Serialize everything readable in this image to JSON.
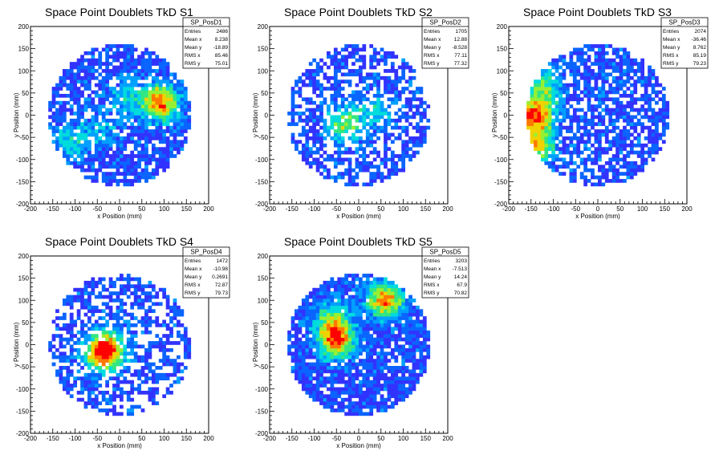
{
  "chart_data": [
    {
      "type": "heatmap",
      "title": "Space Point Doublets TkD S1",
      "xlabel": "x Position (mm)",
      "ylabel": "y Position (mm)",
      "xlim": [
        -200,
        200
      ],
      "ylim": [
        -200,
        200
      ],
      "xticks": [
        "-200",
        "-150",
        "-100",
        "-50",
        "0",
        "50",
        "100",
        "150",
        "200"
      ],
      "yticks": [
        "-200",
        "-150",
        "-100",
        "-50",
        "0",
        "50",
        "100",
        "150",
        "200"
      ],
      "stats": {
        "name": "SP_PosD1",
        "rows": [
          {
            "label": "Entries",
            "value": "2486"
          },
          {
            "label": "Mean x",
            "value": "8.238"
          },
          {
            "label": "Mean y",
            "value": "-18.89"
          },
          {
            "label": "RMS x",
            "value": "85.46"
          },
          {
            "label": "RMS y",
            "value": "75.01"
          }
        ]
      },
      "distribution": {
        "radius": 160,
        "fill": 0.78,
        "hotspots": [
          [
            90,
            30,
            1.0
          ],
          [
            -110,
            -60,
            0.35
          ],
          [
            20,
            40,
            0.3
          ],
          [
            -40,
            -30,
            0.25
          ]
        ]
      }
    },
    {
      "type": "heatmap",
      "title": "Space Point Doublets TkD S2",
      "xlabel": "x Position (mm)",
      "ylabel": "y Position (mm)",
      "xlim": [
        -200,
        200
      ],
      "ylim": [
        -200,
        200
      ],
      "xticks": [
        "-200",
        "-150",
        "-100",
        "-50",
        "0",
        "50",
        "100",
        "150",
        "200"
      ],
      "yticks": [
        "-200",
        "-150",
        "-100",
        "-50",
        "0",
        "50",
        "100",
        "150",
        "200"
      ],
      "stats": {
        "name": "SP_PosD2",
        "rows": [
          {
            "label": "Entries",
            "value": "1705"
          },
          {
            "label": "Mean x",
            "value": "12.88"
          },
          {
            "label": "Mean y",
            "value": "-8.528"
          },
          {
            "label": "RMS x",
            "value": "77.11"
          },
          {
            "label": "RMS y",
            "value": "77.32"
          }
        ]
      },
      "distribution": {
        "radius": 160,
        "fill": 0.58,
        "hotspots": [
          [
            -30,
            -20,
            0.6
          ],
          [
            40,
            10,
            0.3
          ]
        ]
      }
    },
    {
      "type": "heatmap",
      "title": "Space Point Doublets TkD S3",
      "xlabel": "x Position (mm)",
      "ylabel": "y Position (mm)",
      "xlim": [
        -200,
        200
      ],
      "ylim": [
        -200,
        200
      ],
      "xticks": [
        "-200",
        "-150",
        "-100",
        "-50",
        "0",
        "50",
        "100",
        "150",
        "200"
      ],
      "yticks": [
        "-200",
        "-150",
        "-100",
        "-50",
        "0",
        "50",
        "100",
        "150",
        "200"
      ],
      "stats": {
        "name": "SP_PosD3",
        "rows": [
          {
            "label": "Entries",
            "value": "2074"
          },
          {
            "label": "Mean x",
            "value": "-36.46"
          },
          {
            "label": "Mean y",
            "value": "8.762"
          },
          {
            "label": "RMS x",
            "value": "85.19"
          },
          {
            "label": "RMS y",
            "value": "79.23"
          }
        ]
      },
      "distribution": {
        "radius": 160,
        "fill": 0.7,
        "hotspots": [
          [
            -140,
            0,
            1.0
          ],
          [
            -140,
            -70,
            0.8
          ],
          [
            -120,
            60,
            0.5
          ]
        ]
      }
    },
    {
      "type": "heatmap",
      "title": "Space Point Doublets TkD S4",
      "xlabel": "x Position (mm)",
      "ylabel": "y Position (mm)",
      "xlim": [
        -200,
        200
      ],
      "ylim": [
        -200,
        200
      ],
      "xticks": [
        "-200",
        "-150",
        "-100",
        "-50",
        "0",
        "50",
        "100",
        "150",
        "200"
      ],
      "yticks": [
        "-200",
        "-150",
        "-100",
        "-50",
        "0",
        "50",
        "100",
        "150",
        "200"
      ],
      "stats": {
        "name": "SP_PosD4",
        "rows": [
          {
            "label": "Entries",
            "value": "1472"
          },
          {
            "label": "Mean x",
            "value": "-10.98"
          },
          {
            "label": "Mean y",
            "value": "0.2691"
          },
          {
            "label": "RMS x",
            "value": "72.87"
          },
          {
            "label": "RMS y",
            "value": "79.73"
          }
        ]
      },
      "distribution": {
        "radius": 160,
        "fill": 0.55,
        "hotspots": [
          [
            -40,
            -20,
            0.9
          ],
          [
            -20,
            -5,
            0.5
          ]
        ]
      }
    },
    {
      "type": "heatmap",
      "title": "Space Point Doublets TkD S5",
      "xlabel": "x Position (mm)",
      "ylabel": "y Position (mm)",
      "xlim": [
        -200,
        200
      ],
      "ylim": [
        -200,
        200
      ],
      "xticks": [
        "-200",
        "-150",
        "-100",
        "-50",
        "0",
        "50",
        "100",
        "150",
        "200"
      ],
      "yticks": [
        "-200",
        "-150",
        "-100",
        "-50",
        "0",
        "50",
        "100",
        "150",
        "200"
      ],
      "stats": {
        "name": "SP_PosD5",
        "rows": [
          {
            "label": "Entries",
            "value": "3203"
          },
          {
            "label": "Mean x",
            "value": "-7.513"
          },
          {
            "label": "Mean y",
            "value": "14.24"
          },
          {
            "label": "RMS x",
            "value": "67.9"
          },
          {
            "label": "RMS y",
            "value": "70.82"
          }
        ]
      },
      "distribution": {
        "radius": 160,
        "fill": 0.85,
        "hotspots": [
          [
            -50,
            10,
            1.0
          ],
          [
            60,
            100,
            0.9
          ],
          [
            -60,
            60,
            0.5
          ]
        ]
      }
    }
  ],
  "colors": {
    "palette": [
      "#3232ff",
      "#0a64ff",
      "#00a0ff",
      "#00dcdc",
      "#32e682",
      "#96f032",
      "#f0d200",
      "#ff7800",
      "#ff0000"
    ]
  }
}
